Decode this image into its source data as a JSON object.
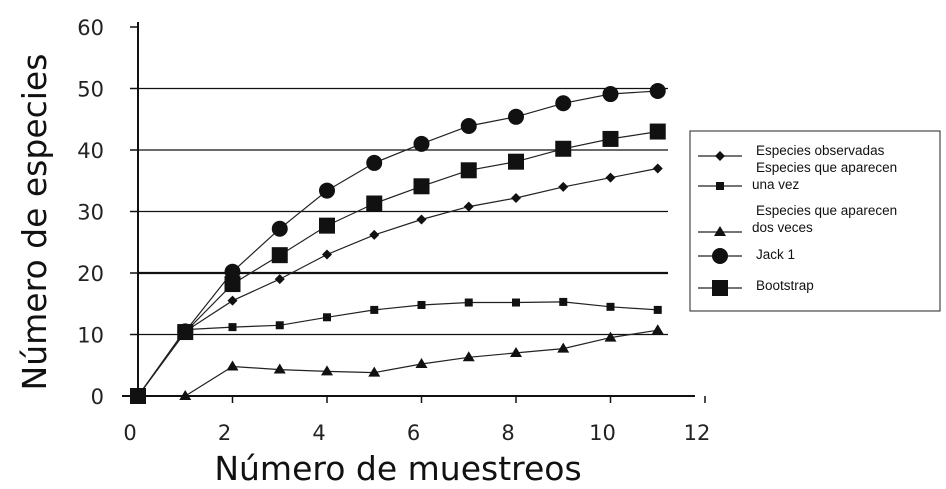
{
  "chart_data": {
    "type": "line",
    "title": "",
    "xlabel": "Número de muestreos",
    "ylabel": "Número de especies",
    "xlim": [
      0,
      12
    ],
    "ylim": [
      0,
      60
    ],
    "x_ticks": [
      "0",
      "2",
      "4",
      "6",
      "8",
      "10",
      "12"
    ],
    "y_ticks": [
      "0",
      "10",
      "20",
      "30",
      "40",
      "50",
      "60"
    ],
    "grid": "horizontal lines at 10-60",
    "legend_position": "right",
    "series": [
      {
        "name": "Especies observadas",
        "marker": "diamond",
        "x": [
          0,
          1,
          2,
          3,
          4,
          5,
          6,
          7,
          8,
          9,
          10,
          11
        ],
        "values": [
          0,
          10.5,
          15.5,
          19,
          23,
          26.2,
          28.7,
          30.8,
          32.2,
          34,
          35.5,
          37
        ]
      },
      {
        "name": "Especies que aparecen una vez",
        "marker": "small-square",
        "x": [
          0,
          1,
          2,
          3,
          4,
          5,
          6,
          7,
          8,
          9,
          10,
          11
        ],
        "values": [
          0,
          10.8,
          11.2,
          11.5,
          12.8,
          14,
          14.8,
          15.2,
          15.2,
          15.3,
          14.5,
          14
        ]
      },
      {
        "name": "Especies que aparecen dos veces",
        "marker": "triangle",
        "x": [
          1,
          2,
          3,
          4,
          5,
          6,
          7,
          8,
          9,
          10,
          11
        ],
        "values": [
          0,
          4.8,
          4.3,
          4,
          3.8,
          5.2,
          6.3,
          7,
          7.7,
          9.5,
          10.7
        ]
      },
      {
        "name": "Jack 1",
        "marker": "circle",
        "x": [
          0,
          1,
          2,
          3,
          4,
          5,
          6,
          7,
          8,
          9,
          10,
          11
        ],
        "values": [
          0,
          10.5,
          20.2,
          27.2,
          33.4,
          37.9,
          41,
          43.9,
          45.4,
          47.6,
          49.1,
          49.6
        ]
      },
      {
        "name": "Bootstrap",
        "marker": "large-square",
        "x": [
          0,
          1,
          2,
          3,
          4,
          5,
          6,
          7,
          8,
          9,
          10,
          11
        ],
        "values": [
          0,
          10.4,
          18.2,
          22.9,
          27.7,
          31.3,
          34.1,
          36.7,
          38.1,
          40.2,
          41.8,
          43
        ]
      }
    ]
  }
}
